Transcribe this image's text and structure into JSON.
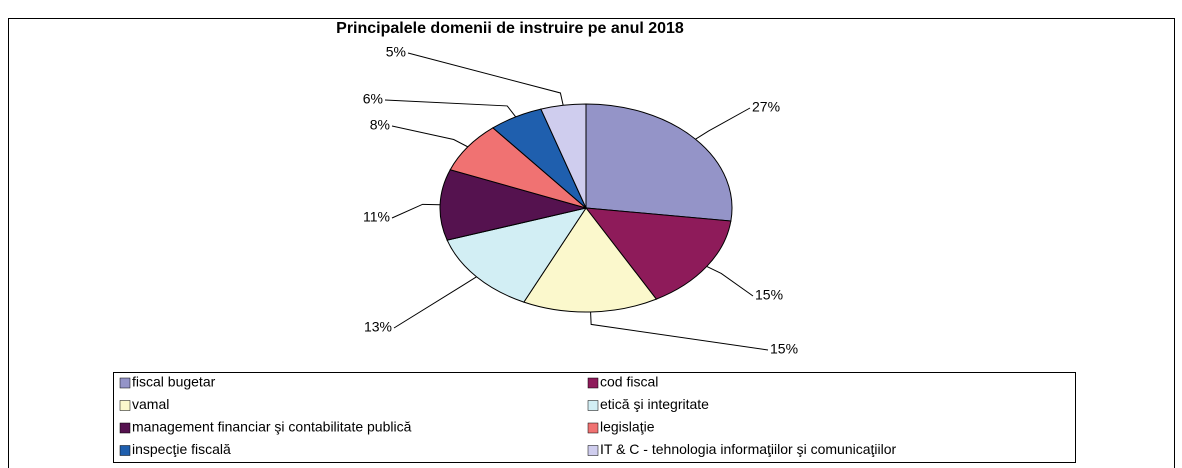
{
  "chart_data": {
    "type": "pie",
    "title": "Principalele domenii de instruire pe anul 2018",
    "categories": [
      "fiscal bugetar",
      "cod fiscal",
      "vamal",
      "etică şi integritate",
      "management financiar şi contabilitate publică",
      "legislaţie",
      "inspecţie fiscală",
      "IT & C - tehnologia informaţiilor şi comunicaţiilor"
    ],
    "values": [
      27,
      15,
      15,
      13,
      11,
      8,
      6,
      5
    ],
    "value_labels": [
      "27%",
      "15%",
      "15%",
      "13%",
      "11%",
      "8%",
      "6%",
      "5%"
    ],
    "colors": [
      "#9494c8",
      "#8e1b5a",
      "#fbf8cc",
      "#d2eef4",
      "#55124f",
      "#f07272",
      "#1f5fae",
      "#cfcdee"
    ]
  }
}
